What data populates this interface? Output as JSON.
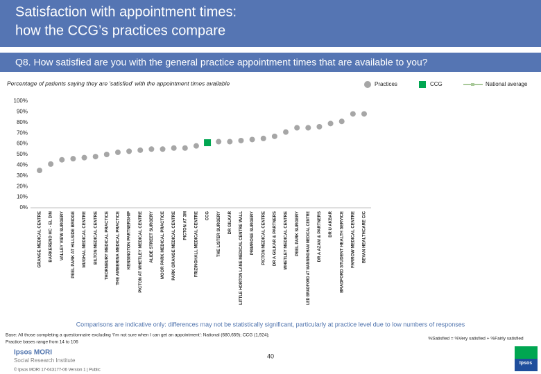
{
  "header": {
    "title_lines": [
      "Satisfaction with appointment times:",
      "how the CCG’s practices compare"
    ],
    "question": "Q8. How satisfied are you with the general practice appointment times that are available to you?"
  },
  "chart_data": {
    "type": "dot",
    "subtitle": "Percentage of patients saying they are 'satisfied' with the appointment times available",
    "categories": [
      "GRANGE MEDICAL CENTRE",
      "BARKEREND HC - EL DIN",
      "VALLEY VIEW SURGERY",
      "PEEL PARK AT HILLSIDE BRIDGE",
      "MUGHAL MEDICAL CENTRE",
      "BILTON MEDICAL CENTRE",
      "THORNBURY MEDICAL PRACTICE",
      "THE AMBERINA MEDICAL PRACTICE",
      "KENSINGTON PARTNERSHIP",
      "PICTON AT WHETLEY MEDICAL CENTRE",
      "ALIDE STREET SURGERY",
      "MOOR PARK MEDICAL PRACTICE",
      "PARK GRANGE MEDICAL CENTRE",
      "PICTON AT 3M",
      "FRIZINGHALL MEDICAL CENTRE",
      "CCG",
      "THE LISTER SURGERY",
      "DR GILKAR",
      "LITTLE HORTON LANE MEDICAL CENTRE WALL",
      "PRIMROSE SURGERY",
      "PICTON MEDICAL CENTRE",
      "DR A GILKAR & PARTNERS",
      "WHETLEY MEDICAL CENTRE",
      "PEEL PARK SURGERY",
      "LED BRADFORD AT MANNINGHAM MEDICAL CENTRE",
      "DR A AZAM & PARTNERS",
      "DR U AKBAR",
      "BRADFORD STUDENT HEALTH SERVICE",
      "FARROW MEDICAL CENTRE",
      "BEVAN HEALTHCARE CIC"
    ],
    "series": [
      {
        "name": "Practices",
        "color": "#a6a6a6",
        "marker": "circle",
        "values": [
          35,
          41,
          45,
          46,
          47,
          48,
          50,
          52,
          53,
          54,
          55,
          55,
          56,
          56,
          58,
          null,
          62,
          62,
          63,
          64,
          65,
          67,
          71,
          75,
          75,
          76,
          79,
          81,
          88,
          88
        ]
      },
      {
        "name": "CCG",
        "color": "#00a651",
        "marker": "square",
        "values": [
          null,
          null,
          null,
          null,
          null,
          null,
          null,
          null,
          null,
          null,
          null,
          null,
          null,
          null,
          null,
          61,
          null,
          null,
          null,
          null,
          null,
          null,
          null,
          null,
          null,
          null,
          null,
          null,
          null,
          null
        ]
      }
    ],
    "legend_extra": {
      "name": "National average",
      "color": "#a9c99a"
    },
    "ylim": [
      0,
      100
    ],
    "yticks": [
      {
        "value": 0,
        "label": "0%"
      },
      {
        "value": 10,
        "label": "10%"
      },
      {
        "value": 20,
        "label": "20%"
      },
      {
        "value": 30,
        "label": "30%"
      },
      {
        "value": 40,
        "label": "40%"
      },
      {
        "value": 50,
        "label": "50%"
      },
      {
        "value": 60,
        "label": "60%"
      },
      {
        "value": 70,
        "label": "70%"
      },
      {
        "value": 80,
        "label": "80%"
      },
      {
        "value": 90,
        "label": "90%"
      },
      {
        "value": 100,
        "label": "100%"
      }
    ]
  },
  "footer": {
    "caveat": "Comparisons are indicative only: differences may not be statistically significant, particularly at practice level due to low numbers of responses",
    "base_lines": [
      "Base: All those completing a questionnaire excluding ‘I’m not sure when I can get an appointment’: National (680,659); CCG (1,924);",
      "Practice bases range from 14 to 106"
    ],
    "definition": "%Satisfied = %Very satisfied + %Fairly satisfied",
    "brand": "Ipsos MORI",
    "institute": "Social Research Institute",
    "page": "40",
    "copyright": "© Ipsos MORI     17-043177-06 Version 1 | Public",
    "logo": "Ipsos"
  }
}
